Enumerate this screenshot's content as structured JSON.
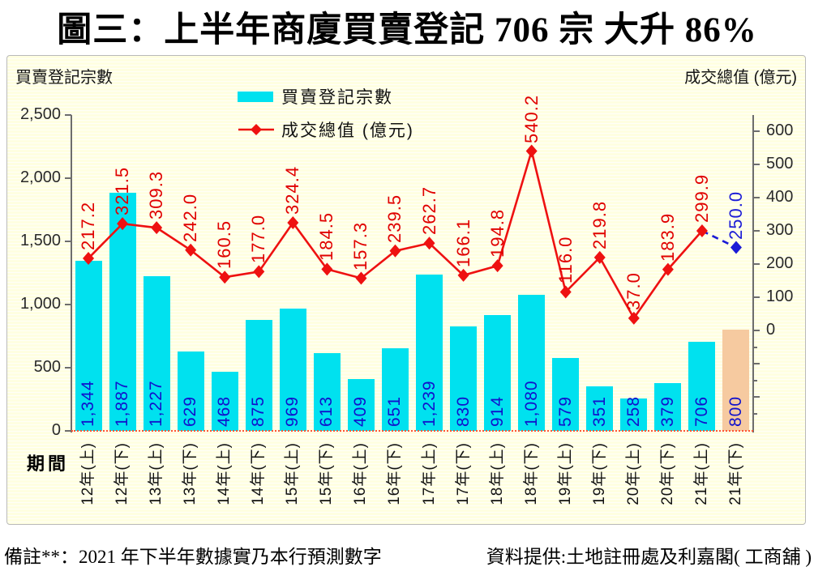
{
  "title": "圖三：上半年商廈買賣登記 706 宗  大升 86%",
  "chart": {
    "left_axis_title": "買賣登記宗數",
    "right_axis_title": "成交總值 (億元)",
    "x_axis_title": "期間",
    "legend": {
      "bar_label": "買賣登記宗數",
      "line_label": "成交總值 (億元)"
    }
  },
  "chart_data": {
    "type": "bar",
    "subtype": "combo-bar-line-dual-axis",
    "categories": [
      "12年(上)",
      "12年(下)",
      "13年(上)",
      "13年(下)",
      "14年(上)",
      "14年(下)",
      "15年(上)",
      "15年(下)",
      "16年(上)",
      "16年(下)",
      "17年(上)",
      "17年(下)",
      "18年(上)",
      "18年(下)",
      "19年(上)",
      "19年(下)",
      "20年(上)",
      "20年(下)",
      "21年(上)",
      "21年(下)"
    ],
    "series": [
      {
        "name": "買賣登記宗數",
        "type": "bar",
        "axis": "left",
        "values": [
          1344,
          1887,
          1227,
          629,
          468,
          875,
          969,
          613,
          409,
          651,
          1239,
          830,
          914,
          1080,
          579,
          351,
          258,
          379,
          706,
          800
        ],
        "labels": [
          "1,344",
          "1,887",
          "1,227",
          "629",
          "468",
          "875",
          "969",
          "613",
          "409",
          "651",
          "1,239",
          "830",
          "914",
          "1,080",
          "579",
          "351",
          "258",
          "379",
          "706",
          "800"
        ],
        "color": "#00e1ef",
        "forecast_color": "#f6caa0",
        "last_point_is_forecast": true
      },
      {
        "name": "成交總值 (億元)",
        "type": "line",
        "axis": "right",
        "values": [
          217.2,
          321.5,
          309.3,
          242.0,
          160.5,
          177.0,
          324.4,
          184.5,
          157.3,
          239.5,
          262.7,
          166.1,
          194.8,
          540.2,
          116.0,
          219.8,
          37.0,
          183.9,
          299.9,
          250.0
        ],
        "labels": [
          "217.2",
          "321.5",
          "309.3",
          "242.0",
          "160.5",
          "177.0",
          "324.4",
          "184.5",
          "157.3",
          "239.5",
          "262.7",
          "166.1",
          "194.8",
          "540.2",
          "116.0",
          "219.8",
          "37.0",
          "183.9",
          "299.9",
          "250.0"
        ],
        "color": "#ee1111",
        "forecast_color": "#1b1bd6",
        "label_color": "#e00000",
        "forecast_label_color": "#1b1bd6",
        "last_point_is_forecast": true
      }
    ],
    "left_axis": {
      "min": 0,
      "max": 2500,
      "tick_step": 500,
      "tick_labels": [
        "2,500",
        "2,000",
        "1,500",
        "1,000",
        "500",
        "0"
      ]
    },
    "right_axis": {
      "max": 600,
      "tick_step": 100,
      "tick_labels": [
        "600",
        "500",
        "400",
        "300",
        "200",
        "100",
        "0"
      ],
      "unlabeled_ticks_below_zero": true
    },
    "xlabel": "期間",
    "ylabel_left": "買賣登記宗數",
    "ylabel_right": "成交總值 (億元)",
    "grid": false,
    "legend_position": "top-center",
    "bar_value_label_color": "#1111cc",
    "baseline_style": "dotted-red"
  },
  "footer": {
    "note": "備註**：2021 年下半年數據實乃本行預測數字",
    "source": "資料提供:土地註冊處及利嘉閣( 工商舖 )"
  }
}
